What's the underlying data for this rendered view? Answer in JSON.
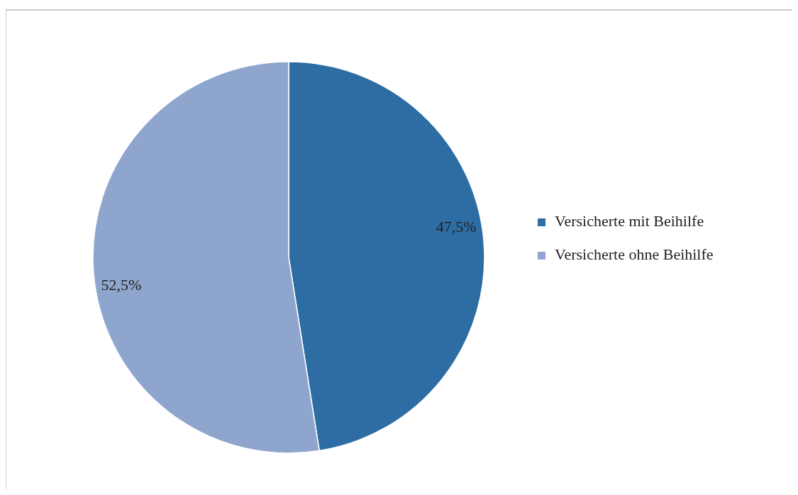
{
  "chart_data": {
    "type": "pie",
    "categories": [
      "Versicherte mit Beihilfe",
      "Versicherte ohne Beihilfe"
    ],
    "values": [
      47.5,
      52.5
    ],
    "colors": [
      "#2e6da4",
      "#8ea6cd"
    ],
    "value_labels": [
      "47,5%",
      "52,5%"
    ],
    "legend": "right"
  }
}
